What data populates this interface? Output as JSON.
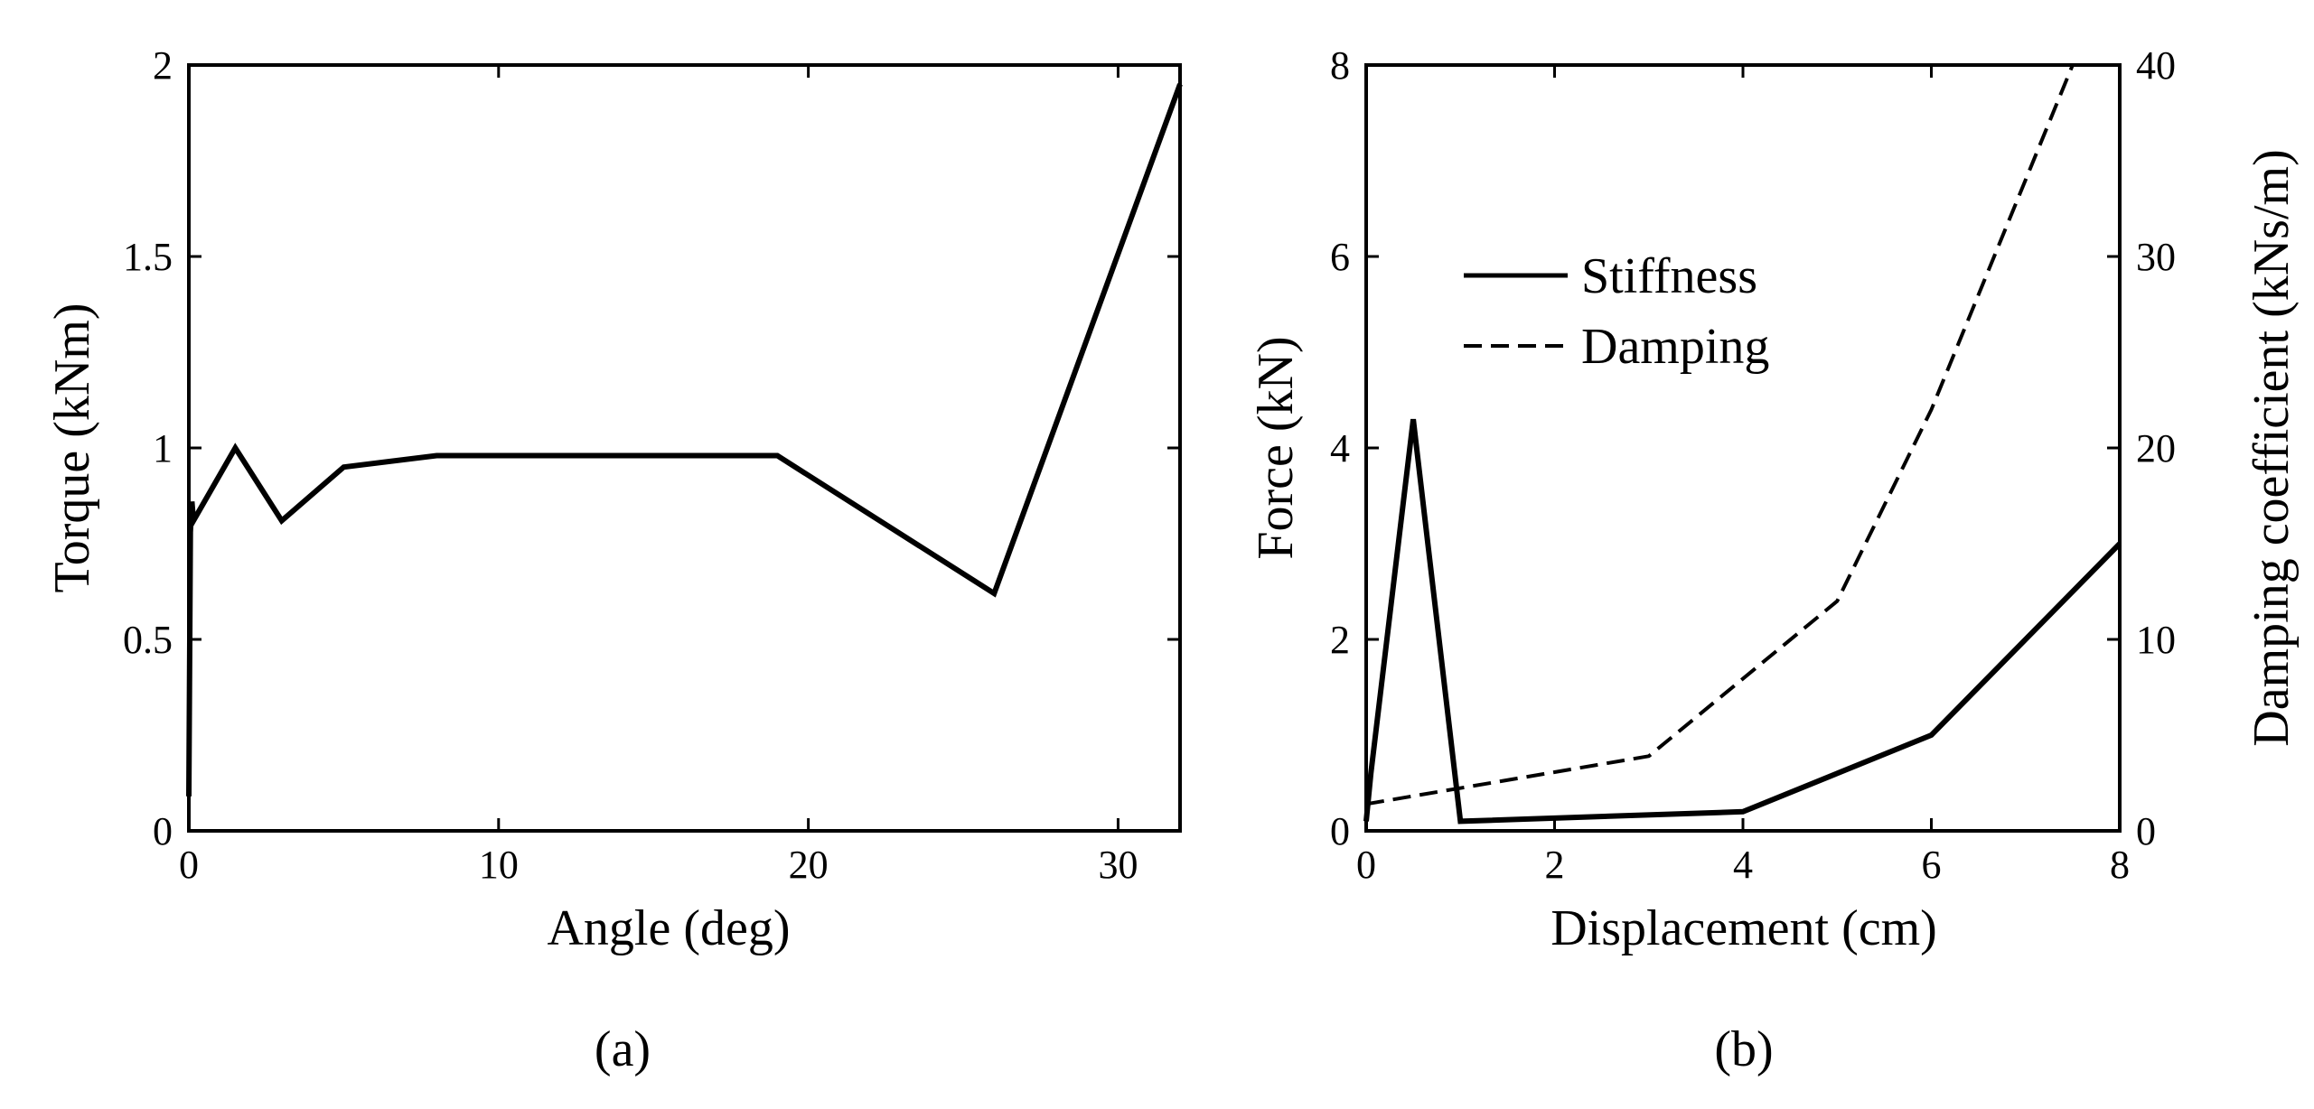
{
  "chart_data": [
    {
      "panel": "(a)",
      "type": "line",
      "xlabel": "Angle (deg)",
      "ylabel": "Torque (kNm)",
      "xlim": [
        0,
        32
      ],
      "ylim": [
        0,
        2
      ],
      "xticks": [
        0,
        10,
        20,
        30
      ],
      "yticks": [
        0,
        0.5,
        1,
        1.5,
        2
      ],
      "ytick_labels": [
        "0",
        "0.5",
        "1",
        "1.5",
        "2"
      ],
      "grid": false,
      "series": [
        {
          "name": "Torque",
          "style": "solid",
          "x": [
            0,
            0.05,
            0.1,
            0.15,
            1.5,
            3,
            5,
            8,
            19,
            26,
            32
          ],
          "y": [
            0.09,
            0.78,
            0.86,
            0.81,
            1.0,
            0.81,
            0.95,
            0.98,
            0.98,
            0.62,
            1.95
          ]
        }
      ]
    },
    {
      "panel": "(b)",
      "type": "line",
      "xlabel": "Displacement (cm)",
      "ylabel": "Force (kN)",
      "y2label": "Damping coefficient (kNs/m)",
      "xlim": [
        0,
        8
      ],
      "ylim": [
        0,
        8
      ],
      "y2lim": [
        0,
        40
      ],
      "xticks": [
        0,
        2,
        4,
        6,
        8
      ],
      "yticks": [
        0,
        2,
        4,
        6,
        8
      ],
      "y2ticks": [
        0,
        10,
        20,
        30,
        40
      ],
      "grid": false,
      "legend": {
        "position": "upper-left",
        "entries": [
          "Stiffness",
          "Damping"
        ]
      },
      "series": [
        {
          "name": "Stiffness",
          "style": "solid",
          "axis": "left",
          "x": [
            0,
            0.05,
            0.5,
            1,
            4,
            6,
            8
          ],
          "y": [
            0.1,
            0.6,
            4.3,
            0.1,
            0.2,
            1.0,
            3.0
          ]
        },
        {
          "name": "Damping",
          "style": "dashed",
          "axis": "right",
          "x": [
            0,
            3,
            5,
            6,
            7.5
          ],
          "y": [
            1.4,
            3.9,
            12.0,
            22.0,
            40.0
          ]
        }
      ]
    }
  ]
}
